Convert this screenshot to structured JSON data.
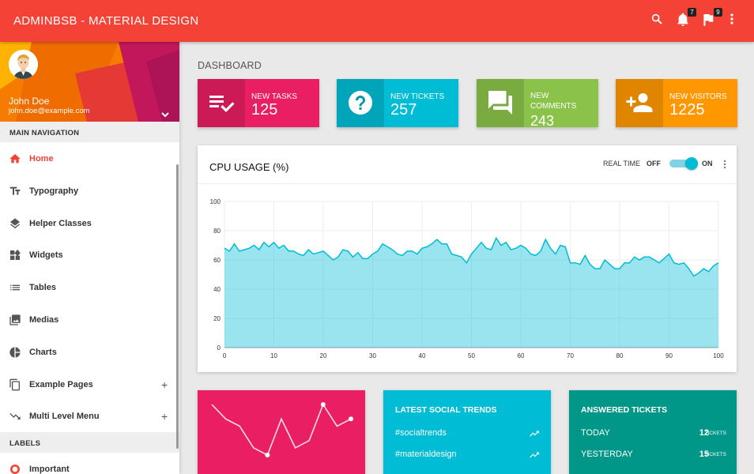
{
  "app": {
    "title": "ADMINBSB - MATERIAL DESIGN"
  },
  "topbar": {
    "icons": [
      "search-icon",
      "bell-icon",
      "flag-icon",
      "more-vert-icon"
    ],
    "notifications_count": "7",
    "tasks_count": "9"
  },
  "user": {
    "name": "John Doe",
    "email": "john.doe@example.com"
  },
  "sidebar": {
    "main_header": "MAIN NAVIGATION",
    "items": [
      {
        "label": "Home",
        "icon": "home-icon",
        "active": true
      },
      {
        "label": "Typography",
        "icon": "text-fields-icon"
      },
      {
        "label": "Helper Classes",
        "icon": "layers-icon"
      },
      {
        "label": "Widgets",
        "icon": "widgets-icon"
      },
      {
        "label": "Tables",
        "icon": "list-icon"
      },
      {
        "label": "Medias",
        "icon": "photo-library-icon"
      },
      {
        "label": "Charts",
        "icon": "pie-chart-icon"
      },
      {
        "label": "Example Pages",
        "icon": "copy-icon",
        "expandable": "+"
      },
      {
        "label": "Multi Level Menu",
        "icon": "trending-down-icon",
        "expandable": "+"
      }
    ],
    "labels_header": "LABELS",
    "label_items": [
      {
        "label": "Important",
        "icon": "donut-icon",
        "color": "#f44336"
      }
    ]
  },
  "page": {
    "title": "DASHBOARD"
  },
  "infoboxes": [
    {
      "label": "NEW TASKS",
      "value": "125",
      "color": "#e91e63",
      "icon": "playlist-check-icon"
    },
    {
      "label": "NEW TICKETS",
      "value": "257",
      "color": "#00bcd4",
      "icon": "help-icon"
    },
    {
      "label": "NEW COMMENTS",
      "value": "243",
      "color": "#8bc34a",
      "icon": "forum-icon"
    },
    {
      "label": "NEW VISITORS",
      "value": "1225",
      "color": "#ff9800",
      "icon": "person-add-icon"
    }
  ],
  "cpu": {
    "title": "CPU USAGE (%)",
    "realtime_label": "REAL TIME",
    "off_label": "OFF",
    "on_label": "ON",
    "realtime_enabled": true
  },
  "chart_data": {
    "type": "area",
    "title": "CPU USAGE (%)",
    "xlim": [
      0,
      100
    ],
    "ylim": [
      0,
      100
    ],
    "xticks": [
      "0",
      "10",
      "20",
      "30",
      "40",
      "50",
      "60",
      "70",
      "80",
      "90",
      "100"
    ],
    "yticks": [
      "0",
      "20",
      "40",
      "60",
      "80",
      "100"
    ],
    "grid": true,
    "color": "#00bcd4",
    "x": [
      0,
      1,
      2,
      3,
      4,
      5,
      6,
      7,
      8,
      9,
      10,
      11,
      12,
      13,
      14,
      15,
      16,
      17,
      18,
      19,
      20,
      21,
      22,
      23,
      24,
      25,
      26,
      27,
      28,
      29,
      30,
      31,
      32,
      33,
      34,
      35,
      36,
      37,
      38,
      39,
      40,
      41,
      42,
      43,
      44,
      45,
      46,
      47,
      48,
      49,
      50,
      51,
      52,
      53,
      54,
      55,
      56,
      57,
      58,
      59,
      60,
      61,
      62,
      63,
      64,
      65,
      66,
      67,
      68,
      69,
      70,
      71,
      72,
      73,
      74,
      75,
      76,
      77,
      78,
      79,
      80,
      81,
      82,
      83,
      84,
      85,
      86,
      87,
      88,
      89,
      90,
      91,
      92,
      93,
      94,
      95,
      96,
      97,
      98,
      99,
      100
    ],
    "y": [
      68,
      66,
      71,
      66,
      67,
      68,
      70,
      67,
      72,
      69,
      72,
      68,
      70,
      66,
      66,
      64,
      63,
      67,
      64,
      65,
      66,
      63,
      60,
      62,
      67,
      66,
      62,
      65,
      61,
      61,
      64,
      66,
      71,
      69,
      67,
      64,
      63,
      66,
      66,
      64,
      68,
      69,
      71,
      74,
      71,
      71,
      64,
      63,
      62,
      58,
      64,
      68,
      72,
      68,
      67,
      75,
      70,
      72,
      67,
      68,
      70,
      68,
      64,
      63,
      66,
      74,
      68,
      64,
      70,
      69,
      58,
      58,
      57,
      63,
      57,
      54,
      54,
      60,
      57,
      54,
      54,
      58,
      58,
      62,
      60,
      62,
      62,
      60,
      58,
      61,
      64,
      58,
      57,
      58,
      54,
      49,
      51,
      54,
      52,
      56,
      58
    ]
  },
  "sparkline_card": {
    "color": "#e91e63",
    "values": [
      10,
      8,
      7,
      4,
      3,
      8,
      4,
      5,
      10,
      7,
      8
    ]
  },
  "social": {
    "title": "LATEST SOCIAL TRENDS",
    "color": "#00bcd4",
    "items": [
      {
        "tag": "#socialtrends",
        "icon": "trending-up-icon"
      },
      {
        "tag": "#materialdesign",
        "icon": "trending-up-icon"
      }
    ]
  },
  "tickets": {
    "title": "ANSWERED TICKETS",
    "color": "#009688",
    "unit": "TICKETS",
    "items": [
      {
        "label": "TODAY",
        "value": "12"
      },
      {
        "label": "YESTERDAY",
        "value": "15"
      }
    ]
  }
}
